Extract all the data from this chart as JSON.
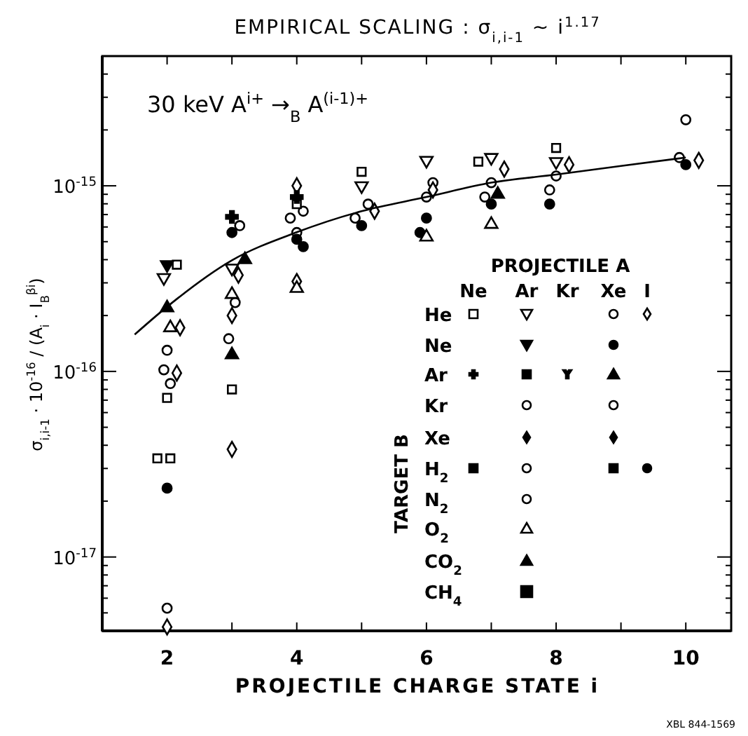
{
  "chart_data": {
    "type": "scatter",
    "title": "EMPIRICAL SCALING : σ$_{i,i-1}$ ~ i$^{1.17}$",
    "xlabel": "PROJECTILE CHARGE STATE i",
    "ylabel": "σ$_{i,i-1}$ · 10$^{-16}$ / (A$_{i}$ · I$_{B}$$^{βi}$)",
    "xlim": [
      1,
      10.7
    ],
    "xticks": [
      {
        "value": 1,
        "label": null
      },
      2,
      {
        "value": 3,
        "label": null
      },
      4,
      {
        "value": 5,
        "label": null
      },
      6,
      {
        "value": 7,
        "label": null
      },
      8,
      {
        "value": 9,
        "label": null
      },
      10
    ],
    "ylim": [
      4e-18,
      5e-15
    ],
    "yticks": [
      {
        "value": 1e-17,
        "label": "10$^{-17}$"
      },
      {
        "value": 1e-16,
        "label": "10$^{-16}$"
      },
      {
        "value": 1e-15,
        "label": "10$^{-15}$"
      }
    ],
    "log": "y",
    "grid": false,
    "series": [
      {
        "type": "scatter",
        "marker": "circle",
        "color": "#ffffff",
        "x": [
          2,
          1.95,
          2.05,
          2,
          3.12,
          3.05,
          2.95,
          4.1,
          3.9,
          4,
          5.1,
          4.9,
          6,
          6.1,
          7,
          6.9,
          8,
          7.9,
          10,
          9.9
        ],
        "values": [
          1.3e-16,
          1.02e-16,
          8.6e-17,
          5.3e-18,
          6.1e-16,
          2.35e-16,
          1.5e-16,
          7.3e-16,
          6.7e-16,
          5.6e-16,
          7.97e-16,
          6.7e-16,
          8.7e-16,
          1.04e-15,
          1.04e-15,
          8.7e-16,
          1.13e-15,
          9.5e-16,
          2.27e-15,
          1.42e-15
        ]
      },
      {
        "type": "scatter",
        "marker": "circle",
        "color": "#000000",
        "x": [
          2,
          3,
          4,
          4.1,
          5,
          6,
          5.9,
          7,
          7.9,
          10
        ],
        "values": [
          2.35e-17,
          5.6e-16,
          5.15e-16,
          4.7e-16,
          6.1e-16,
          6.7e-16,
          5.6e-16,
          7.97e-16,
          7.97e-16,
          1.3e-15
        ]
      },
      {
        "type": "scatter",
        "marker": "diamond",
        "color": "#ffffff",
        "x": [
          2.2,
          2.15,
          2,
          3.1,
          3,
          3,
          4,
          4,
          5.2,
          6.1,
          7.2,
          8.2,
          10.2
        ],
        "values": [
          1.72e-16,
          9.8e-17,
          4.2e-18,
          3.3e-16,
          2e-16,
          3.8e-17,
          1e-15,
          3.05e-16,
          7.3e-16,
          9.5e-16,
          1.23e-15,
          1.3e-15,
          1.37e-15
        ]
      },
      {
        "type": "scatter",
        "marker": "square",
        "color": "#ffffff",
        "x": [
          1.85,
          2.05,
          2.15,
          2,
          3,
          4,
          5,
          6.8,
          8
        ],
        "values": [
          3.4e-17,
          3.4e-17,
          3.76e-16,
          7.2e-17,
          8e-17,
          7.97e-16,
          1.19e-15,
          1.35e-15,
          1.6e-15
        ]
      },
      {
        "type": "scatter",
        "marker": "triangle-down",
        "color": "#ffffff",
        "x": [
          1.95,
          3,
          5,
          6,
          7,
          8
        ],
        "values": [
          3.2e-16,
          3.6e-16,
          1e-15,
          1.37e-15,
          1.42e-15,
          1.35e-15
        ]
      },
      {
        "type": "scatter",
        "marker": "triangle-down",
        "color": "#000000",
        "x": [
          2
        ],
        "values": [
          3.76e-16
        ]
      },
      {
        "type": "scatter",
        "marker": "triangle",
        "color": "#ffffff",
        "x": [
          2.05,
          3,
          4,
          6,
          7
        ],
        "values": [
          1.72e-16,
          2.6e-16,
          2.8e-16,
          5.3e-16,
          6.2e-16
        ]
      },
      {
        "type": "scatter",
        "marker": "triangle",
        "color": "#000000",
        "x": [
          2,
          3.2,
          3,
          7.1
        ],
        "values": [
          2.2e-16,
          4e-16,
          1.23e-16,
          9e-16
        ]
      },
      {
        "type": "scatter",
        "marker": "cross",
        "color": "#000000",
        "x": [
          3,
          4
        ],
        "values": [
          6.8e-16,
          8.7e-16
        ]
      },
      {
        "type": "line",
        "marker": "none",
        "line_style": "solid",
        "color": "#000000",
        "x": [
          1.5,
          2,
          3,
          4,
          5,
          6,
          7,
          8,
          9,
          10
        ],
        "values": [
          1.58e-16,
          2.23e-16,
          3.97e-16,
          5.62e-16,
          7.3e-16,
          8.7e-16,
          1.04e-15,
          1.15e-15,
          1.28e-15,
          1.42e-15
        ]
      }
    ],
    "annotations": [
      "30 keV  A$^{i+}$ →$_{B}$ A$^{(i-1)+}$",
      "PROJECTILE  A",
      "Ne",
      "Ar",
      "Kr",
      "Xe",
      "I",
      "TARGET  B",
      "He",
      "Ne",
      "Ar",
      "Kr",
      "Xe",
      "H$_{2}$",
      "N$_{2}$",
      "O$_{2}$",
      "CO$_{2}$",
      "CH$_{4}$",
      "XBL 844-1569"
    ]
  }
}
